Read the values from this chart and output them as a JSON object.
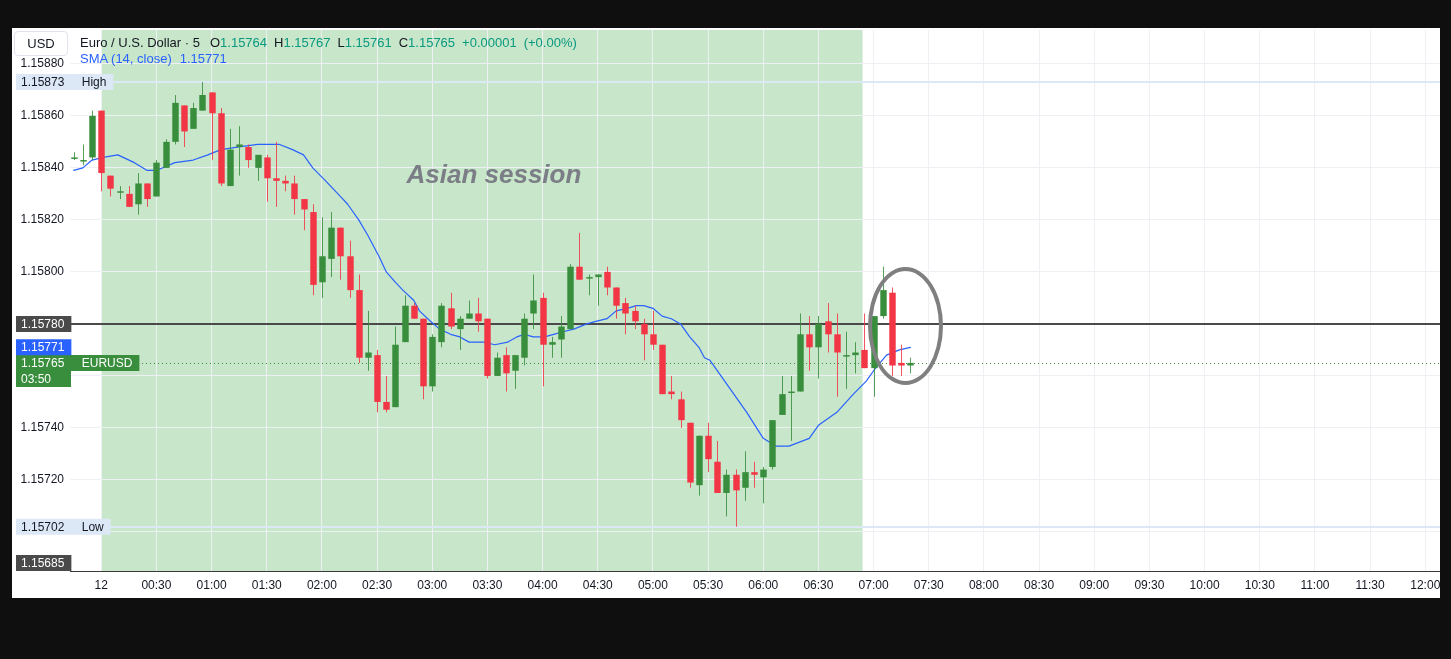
{
  "chart_data": {
    "type": "candlestick",
    "title": "Euro / U.S. Dollar · 5",
    "subtitle": "O1.15764 H1.15767 L1.15761 C1.15765 +0.00001 (+0.00%)",
    "ylabel": "USD",
    "x": [
      "--11-11T23:45",
      "--11-11T23:50",
      "--11-11T23:55",
      "--11-12T00:00",
      "--11-12T00:05",
      "--11-12T00:10",
      "--11-12T00:15",
      "--11-12T00:20",
      "--11-12T00:25",
      "--11-12T00:30",
      "--11-12T00:35",
      "--11-12T00:40",
      "--11-12T00:45",
      "--11-12T00:50",
      "--11-12T00:55",
      "--11-12T01:00",
      "--11-12T01:05",
      "--11-12T01:10",
      "--11-12T01:15",
      "--11-12T01:20",
      "--11-12T01:25",
      "--11-12T01:30",
      "--11-12T01:35",
      "--11-12T01:40",
      "--11-12T01:45",
      "--11-12T01:50",
      "--11-12T01:55",
      "--11-12T02:00",
      "--11-12T02:05",
      "--11-12T02:10",
      "--11-12T02:15",
      "--11-12T02:20",
      "--11-12T02:25",
      "--11-12T02:30",
      "--11-12T02:35",
      "--11-12T02:40",
      "--11-12T02:45",
      "--11-12T02:50",
      "--11-12T02:55",
      "--11-12T03:00",
      "--11-12T03:05",
      "--11-12T03:10",
      "--11-12T03:15",
      "--11-12T03:20",
      "--11-12T03:25",
      "--11-12T03:30",
      "--11-12T03:35",
      "--11-12T03:40",
      "--11-12T03:45",
      "--11-12T03:50",
      "--11-12T03:55",
      "--11-12T04:00",
      "--11-12T04:05",
      "--11-12T04:10",
      "--11-12T04:15",
      "--11-12T04:20",
      "--11-12T04:25",
      "--11-12T04:30",
      "--11-12T04:35",
      "--11-12T04:40",
      "--11-12T04:45",
      "--11-12T04:50",
      "--11-12T04:55",
      "--11-12T05:00",
      "--11-12T05:05",
      "--11-12T05:10",
      "--11-12T05:15",
      "--11-12T05:20",
      "--11-12T05:25",
      "--11-12T05:30",
      "--11-12T05:35",
      "--11-12T05:40",
      "--11-12T05:45",
      "--11-12T05:50",
      "--11-12T05:55",
      "--11-12T06:00",
      "--11-12T06:05",
      "--11-12T06:10",
      "--11-12T06:15",
      "--11-12T06:20",
      "--11-12T06:25",
      "--11-12T06:30",
      "--11-12T06:35",
      "--11-12T06:40",
      "--11-12T06:45",
      "--11-12T06:50",
      "--11-12T06:55",
      "--11-12T07:00",
      "--11-12T07:05",
      "--11-12T07:10",
      "--11-12T07:15",
      "--11-12T07:20"
    ],
    "ohlc": [
      [
        1.15844,
        1.15846,
        1.15843,
        1.15844
      ],
      [
        1.15843,
        1.15849,
        1.15841,
        1.15843
      ],
      [
        1.15844,
        1.15862,
        1.15843,
        1.1586
      ],
      [
        1.15862,
        1.15862,
        1.15831,
        1.15838
      ],
      [
        1.15837,
        1.15837,
        1.15829,
        1.15832
      ],
      [
        1.15831,
        1.15833,
        1.15828,
        1.15831
      ],
      [
        1.1583,
        1.15833,
        1.15825,
        1.15825
      ],
      [
        1.15826,
        1.15838,
        1.15822,
        1.15834
      ],
      [
        1.15834,
        1.15834,
        1.15825,
        1.15828
      ],
      [
        1.15829,
        1.15843,
        1.15829,
        1.15842
      ],
      [
        1.1584,
        1.15851,
        1.1584,
        1.1585
      ],
      [
        1.1585,
        1.15868,
        1.15849,
        1.15865
      ],
      [
        1.15864,
        1.15864,
        1.15848,
        1.15854
      ],
      [
        1.15855,
        1.15865,
        1.15855,
        1.15863
      ],
      [
        1.15862,
        1.15873,
        1.15862,
        1.15868
      ],
      [
        1.15869,
        1.15869,
        1.15843,
        1.15861
      ],
      [
        1.15861,
        1.15863,
        1.15833,
        1.15834
      ],
      [
        1.15833,
        1.15855,
        1.15833,
        1.15847
      ],
      [
        1.15848,
        1.15856,
        1.15837,
        1.15849
      ],
      [
        1.15848,
        1.15849,
        1.1584,
        1.15843
      ],
      [
        1.1584,
        1.15845,
        1.15835,
        1.15845
      ],
      [
        1.15844,
        1.15845,
        1.15827,
        1.15836
      ],
      [
        1.15836,
        1.1585,
        1.15825,
        1.15835
      ],
      [
        1.15835,
        1.15837,
        1.15831,
        1.15834
      ],
      [
        1.15834,
        1.15837,
        1.15822,
        1.15828
      ],
      [
        1.15828,
        1.15828,
        1.15816,
        1.15824
      ],
      [
        1.15823,
        1.15826,
        1.15791,
        1.15795
      ],
      [
        1.15796,
        1.15821,
        1.1579,
        1.15806
      ],
      [
        1.15805,
        1.15823,
        1.15798,
        1.15817
      ],
      [
        1.15817,
        1.15817,
        1.15797,
        1.15806
      ],
      [
        1.15806,
        1.15812,
        1.1579,
        1.15793
      ],
      [
        1.15793,
        1.15799,
        1.15765,
        1.15767
      ],
      [
        1.15767,
        1.15785,
        1.15762,
        1.15769
      ],
      [
        1.15768,
        1.1577,
        1.15746,
        1.1575
      ],
      [
        1.1575,
        1.1576,
        1.15746,
        1.15747
      ],
      [
        1.15748,
        1.15779,
        1.15748,
        1.15772
      ],
      [
        1.15773,
        1.15791,
        1.15773,
        1.15787
      ],
      [
        1.15787,
        1.15788,
        1.15782,
        1.15782
      ],
      [
        1.15782,
        1.15782,
        1.15751,
        1.15756
      ],
      [
        1.15756,
        1.15776,
        1.15754,
        1.15775
      ],
      [
        1.15773,
        1.15788,
        1.15771,
        1.15787
      ],
      [
        1.15786,
        1.15792,
        1.15778,
        1.15779
      ],
      [
        1.15778,
        1.15783,
        1.1577,
        1.15782
      ],
      [
        1.15782,
        1.15789,
        1.15782,
        1.15784
      ],
      [
        1.15784,
        1.1579,
        1.15777,
        1.15781
      ],
      [
        1.15782,
        1.15782,
        1.15759,
        1.1576
      ],
      [
        1.1576,
        1.15769,
        1.1576,
        1.15767
      ],
      [
        1.15768,
        1.15771,
        1.15754,
        1.15761
      ],
      [
        1.15762,
        1.15768,
        1.15755,
        1.15768
      ],
      [
        1.15767,
        1.15784,
        1.15764,
        1.15782
      ],
      [
        1.15784,
        1.15799,
        1.15778,
        1.15789
      ],
      [
        1.1579,
        1.15792,
        1.15756,
        1.15772
      ],
      [
        1.15772,
        1.15775,
        1.15767,
        1.15773
      ],
      [
        1.15774,
        1.15783,
        1.15767,
        1.15779
      ],
      [
        1.15778,
        1.15803,
        1.15778,
        1.15802
      ],
      [
        1.15802,
        1.15815,
        1.15797,
        1.15797
      ],
      [
        1.15798,
        1.15799,
        1.15791,
        1.15798
      ],
      [
        1.15798,
        1.15799,
        1.15787,
        1.15799
      ],
      [
        1.158,
        1.15802,
        1.15791,
        1.15794
      ],
      [
        1.15794,
        1.15794,
        1.15782,
        1.15787
      ],
      [
        1.15788,
        1.1579,
        1.15776,
        1.15784
      ],
      [
        1.15785,
        1.15787,
        1.15778,
        1.15781
      ],
      [
        1.1578,
        1.15782,
        1.15766,
        1.15776
      ],
      [
        1.15776,
        1.15785,
        1.1577,
        1.15772
      ],
      [
        1.15772,
        1.15772,
        1.15753,
        1.15753
      ],
      [
        1.15754,
        1.1576,
        1.15751,
        1.15753
      ],
      [
        1.15751,
        1.15754,
        1.1574,
        1.15743
      ],
      [
        1.15742,
        1.15742,
        1.15717,
        1.15719
      ],
      [
        1.15718,
        1.15737,
        1.15714,
        1.15737
      ],
      [
        1.15737,
        1.15742,
        1.15723,
        1.15728
      ],
      [
        1.15727,
        1.15735,
        1.15715,
        1.15715
      ],
      [
        1.15715,
        1.15724,
        1.15706,
        1.15722
      ],
      [
        1.15722,
        1.15724,
        1.15702,
        1.15716
      ],
      [
        1.15717,
        1.15731,
        1.15712,
        1.15723
      ],
      [
        1.15723,
        1.15727,
        1.15717,
        1.15722
      ],
      [
        1.15721,
        1.15725,
        1.15711,
        1.15724
      ],
      [
        1.15725,
        1.15743,
        1.15724,
        1.15743
      ],
      [
        1.15745,
        1.1576,
        1.15745,
        1.15753
      ],
      [
        1.15754,
        1.1576,
        1.15735,
        1.15754
      ],
      [
        1.15754,
        1.15784,
        1.15754,
        1.15776
      ],
      [
        1.15776,
        1.15783,
        1.15762,
        1.15771
      ],
      [
        1.15771,
        1.15783,
        1.15759,
        1.1578
      ],
      [
        1.15781,
        1.15788,
        1.15769,
        1.15776
      ],
      [
        1.15776,
        1.15784,
        1.15752,
        1.15769
      ],
      [
        1.15768,
        1.15777,
        1.15755,
        1.15768
      ],
      [
        1.15768,
        1.15773,
        1.15761,
        1.15769
      ],
      [
        1.1577,
        1.15784,
        1.15763,
        1.15763
      ],
      [
        1.15763,
        1.15783,
        1.15752,
        1.15783
      ],
      [
        1.15783,
        1.15802,
        1.15782,
        1.15793
      ],
      [
        1.15792,
        1.15794,
        1.1576,
        1.15764
      ],
      [
        1.15765,
        1.15772,
        1.1576,
        1.15764
      ],
      [
        1.15764,
        1.15767,
        1.15761,
        1.15765
      ]
    ],
    "colors": [
      "#388e3c",
      "#388e3c",
      "#388e3c",
      "#f23645",
      "#f23645",
      "#388e3c",
      "#f23645",
      "#388e3c",
      "#f23645",
      "#388e3c",
      "#388e3c",
      "#388e3c",
      "#f23645",
      "#388e3c",
      "#388e3c",
      "#f23645",
      "#f23645",
      "#388e3c",
      "#388e3c",
      "#f23645",
      "#388e3c",
      "#f23645",
      "#f23645",
      "#f23645",
      "#f23645",
      "#f23645",
      "#f23645",
      "#388e3c",
      "#388e3c",
      "#f23645",
      "#f23645",
      "#f23645",
      "#388e3c",
      "#f23645",
      "#f23645",
      "#388e3c",
      "#388e3c",
      "#f23645",
      "#f23645",
      "#388e3c",
      "#388e3c",
      "#f23645",
      "#388e3c",
      "#388e3c",
      "#f23645",
      "#f23645",
      "#388e3c",
      "#f23645",
      "#388e3c",
      "#388e3c",
      "#388e3c",
      "#f23645",
      "#388e3c",
      "#388e3c",
      "#388e3c",
      "#f23645",
      "#388e3c",
      "#388e3c",
      "#f23645",
      "#f23645",
      "#f23645",
      "#f23645",
      "#f23645",
      "#f23645",
      "#f23645",
      "#f23645",
      "#f23645",
      "#f23645",
      "#388e3c",
      "#f23645",
      "#f23645",
      "#388e3c",
      "#f23645",
      "#388e3c",
      "#f23645",
      "#388e3c",
      "#388e3c",
      "#388e3c",
      "#388e3c",
      "#388e3c",
      "#f23645",
      "#388e3c",
      "#f23645",
      "#f23645",
      "#388e3c",
      "#388e3c",
      "#f23645",
      "#388e3c",
      "#388e3c",
      "#f23645",
      "#f23645",
      "#388e3c"
    ],
    "series": [
      {
        "name": "SMA (14, close)",
        "type": "line",
        "color": "#2962ff",
        "x": [
          "--11-11T23:45",
          "--11-11T23:50",
          "--11-11T23:55",
          "--11-12T00:01",
          "--11-12T00:09",
          "--11-12T00:18",
          "--11-12T00:25",
          "--11-12T00:30",
          "--11-12T00:40",
          "--11-12T00:50",
          "--11-12T00:58",
          "--11-12T01:05",
          "--11-12T01:14",
          "--11-12T01:25",
          "--11-12T01:34",
          "--11-12T01:37",
          "--11-12T01:44",
          "--11-12T01:50",
          "--11-12T01:55",
          "--11-12T02:02",
          "--11-12T02:10",
          "--11-12T02:14",
          "--11-12T02:20",
          "--11-12T02:25",
          "--11-12T02:31",
          "--11-12T02:35",
          "--11-12T02:40",
          "--11-12T02:44",
          "--11-12T02:50",
          "--11-12T02:53",
          "--11-12T02:59",
          "--11-12T03:04",
          "--11-12T03:10",
          "--11-12T03:15",
          "--11-12T03:20",
          "--11-12T03:28",
          "--11-12T03:34",
          "--11-12T03:41",
          "--11-12T03:46",
          "--11-12T03:50",
          "--11-12T03:55",
          "--11-12T04:01",
          "--11-12T04:06",
          "--11-12T04:11",
          "--11-12T04:17",
          "--11-12T04:24",
          "--11-12T04:29",
          "--11-12T04:35",
          "--11-12T04:40",
          "--11-12T04:46",
          "--11-12T04:51",
          "--11-12T04:55",
          "--11-12T05:00",
          "--11-12T05:05",
          "--11-12T05:10",
          "--11-12T05:15",
          "--11-12T05:20",
          "--11-12T05:25",
          "--11-12T05:28",
          "--11-12T05:31",
          "--11-12T05:37",
          "--11-12T05:44",
          "--11-12T05:51",
          "--11-12T06:00",
          "--11-12T06:07",
          "--11-12T06:14",
          "--11-12T06:25",
          "--11-12T06:30",
          "--11-12T06:40",
          "--11-12T06:49",
          "--11-12T06:56",
          "--11-12T07:00",
          "--11-12T07:07",
          "--11-12T07:14",
          "--11-12T07:20"
        ],
        "values": [
          1.15839,
          1.1584,
          1.15843,
          1.15844,
          1.15845,
          1.15842,
          1.15839,
          1.15839,
          1.15842,
          1.15843,
          1.15845,
          1.15847,
          1.15848,
          1.15849,
          1.15849,
          1.15849,
          1.15847,
          1.15845,
          1.1584,
          1.15835,
          1.15829,
          1.15826,
          1.1582,
          1.15814,
          1.15806,
          1.158,
          1.15796,
          1.15793,
          1.15789,
          1.15785,
          1.15781,
          1.15778,
          1.15776,
          1.15775,
          1.15773,
          1.15773,
          1.15772,
          1.15773,
          1.15775,
          1.15776,
          1.15775,
          1.15775,
          1.15776,
          1.15777,
          1.15778,
          1.1578,
          1.15781,
          1.15782,
          1.15785,
          1.15786,
          1.15787,
          1.15787,
          1.15786,
          1.15783,
          1.15782,
          1.1578,
          1.15775,
          1.15771,
          1.15767,
          1.15766,
          1.1576,
          1.15753,
          1.15746,
          1.15736,
          1.15733,
          1.15733,
          1.15736,
          1.15741,
          1.15746,
          1.15753,
          1.15758,
          1.15762,
          1.15768,
          1.1577,
          1.15771
        ]
      }
    ],
    "xlim": [
      "--11-11T23:43",
      "--11-12T12:08"
    ],
    "xticks": [
      {
        "value": "--11-12T00:00",
        "label": "12"
      },
      {
        "value": "--11-12T00:30",
        "label": "00:30"
      },
      {
        "value": "--11-12T01:00",
        "label": "01:00"
      },
      {
        "value": "--11-12T01:30",
        "label": "01:30"
      },
      {
        "value": "--11-12T02:00",
        "label": "02:00"
      },
      {
        "value": "--11-12T02:30",
        "label": "02:30"
      },
      {
        "value": "--11-12T03:00",
        "label": "03:00"
      },
      {
        "value": "--11-12T03:30",
        "label": "03:30"
      },
      {
        "value": "--11-12T04:00",
        "label": "04:00"
      },
      {
        "value": "--11-12T04:30",
        "label": "04:30"
      },
      {
        "value": "--11-12T05:00",
        "label": "05:00"
      },
      {
        "value": "--11-12T05:30",
        "label": "05:30"
      },
      {
        "value": "--11-12T06:00",
        "label": "06:00"
      },
      {
        "value": "--11-12T06:30",
        "label": "06:30"
      },
      {
        "value": "--11-12T07:00",
        "label": "07:00"
      },
      {
        "value": "--11-12T07:30",
        "label": "07:30"
      },
      {
        "value": "--11-12T08:00",
        "label": "08:00"
      },
      {
        "value": "--11-12T08:30",
        "label": "08:30"
      },
      {
        "value": "--11-12T09:00",
        "label": "09:00"
      },
      {
        "value": "--11-12T09:30",
        "label": "09:30"
      },
      {
        "value": "--11-12T10:00",
        "label": "10:00"
      },
      {
        "value": "--11-12T10:30",
        "label": "10:30"
      },
      {
        "value": "--11-12T11:00",
        "label": "11:00"
      },
      {
        "value": "--11-12T11:30",
        "label": "11:30"
      },
      {
        "value": "--11-12T12:00",
        "label": "12:00"
      }
    ],
    "ylim": [
      1.15685,
      1.15893
    ],
    "yticks": [
      1.15685,
      {
        "value": 1.157,
        "label": null
      },
      {
        "value": 1.1572,
        "label": "1.15720"
      },
      {
        "value": 1.1574,
        "label": "1.15740"
      },
      {
        "value": 1.1576,
        "label": null
      },
      {
        "value": 1.1578,
        "label": null
      },
      {
        "value": 1.158,
        "label": "1.15800"
      },
      {
        "value": 1.1582,
        "label": "1.15820"
      },
      {
        "value": 1.1584,
        "label": "1.15840"
      },
      {
        "value": 1.1586,
        "label": "1.15860"
      },
      {
        "value": 1.1588,
        "label": "1.15880"
      }
    ],
    "grid": true,
    "legend": "top left",
    "ref_lines": [
      {
        "axis": "y",
        "value": 1.15873,
        "label": "1.15873 High",
        "color": "#dde8f6"
      },
      {
        "axis": "y",
        "value": 1.1578,
        "label": "1.15780",
        "color": "#4a4a4a"
      },
      {
        "axis": "y",
        "value": 1.15765,
        "label": "1.15765 EURUSD",
        "color": "#388e3c",
        "line_style": "dotted"
      },
      {
        "axis": "y",
        "value": 1.15702,
        "label": "1.15702 Low",
        "color": "#dde8f6"
      }
    ],
    "bands": [
      {
        "axis": "x",
        "from": "--11-12T00:00",
        "to": "--11-12T06:54",
        "label": "Asian session",
        "color": "#c8e6c9"
      }
    ],
    "annotations": [
      "1.15771",
      "03:50",
      "1.15771"
    ]
  }
}
